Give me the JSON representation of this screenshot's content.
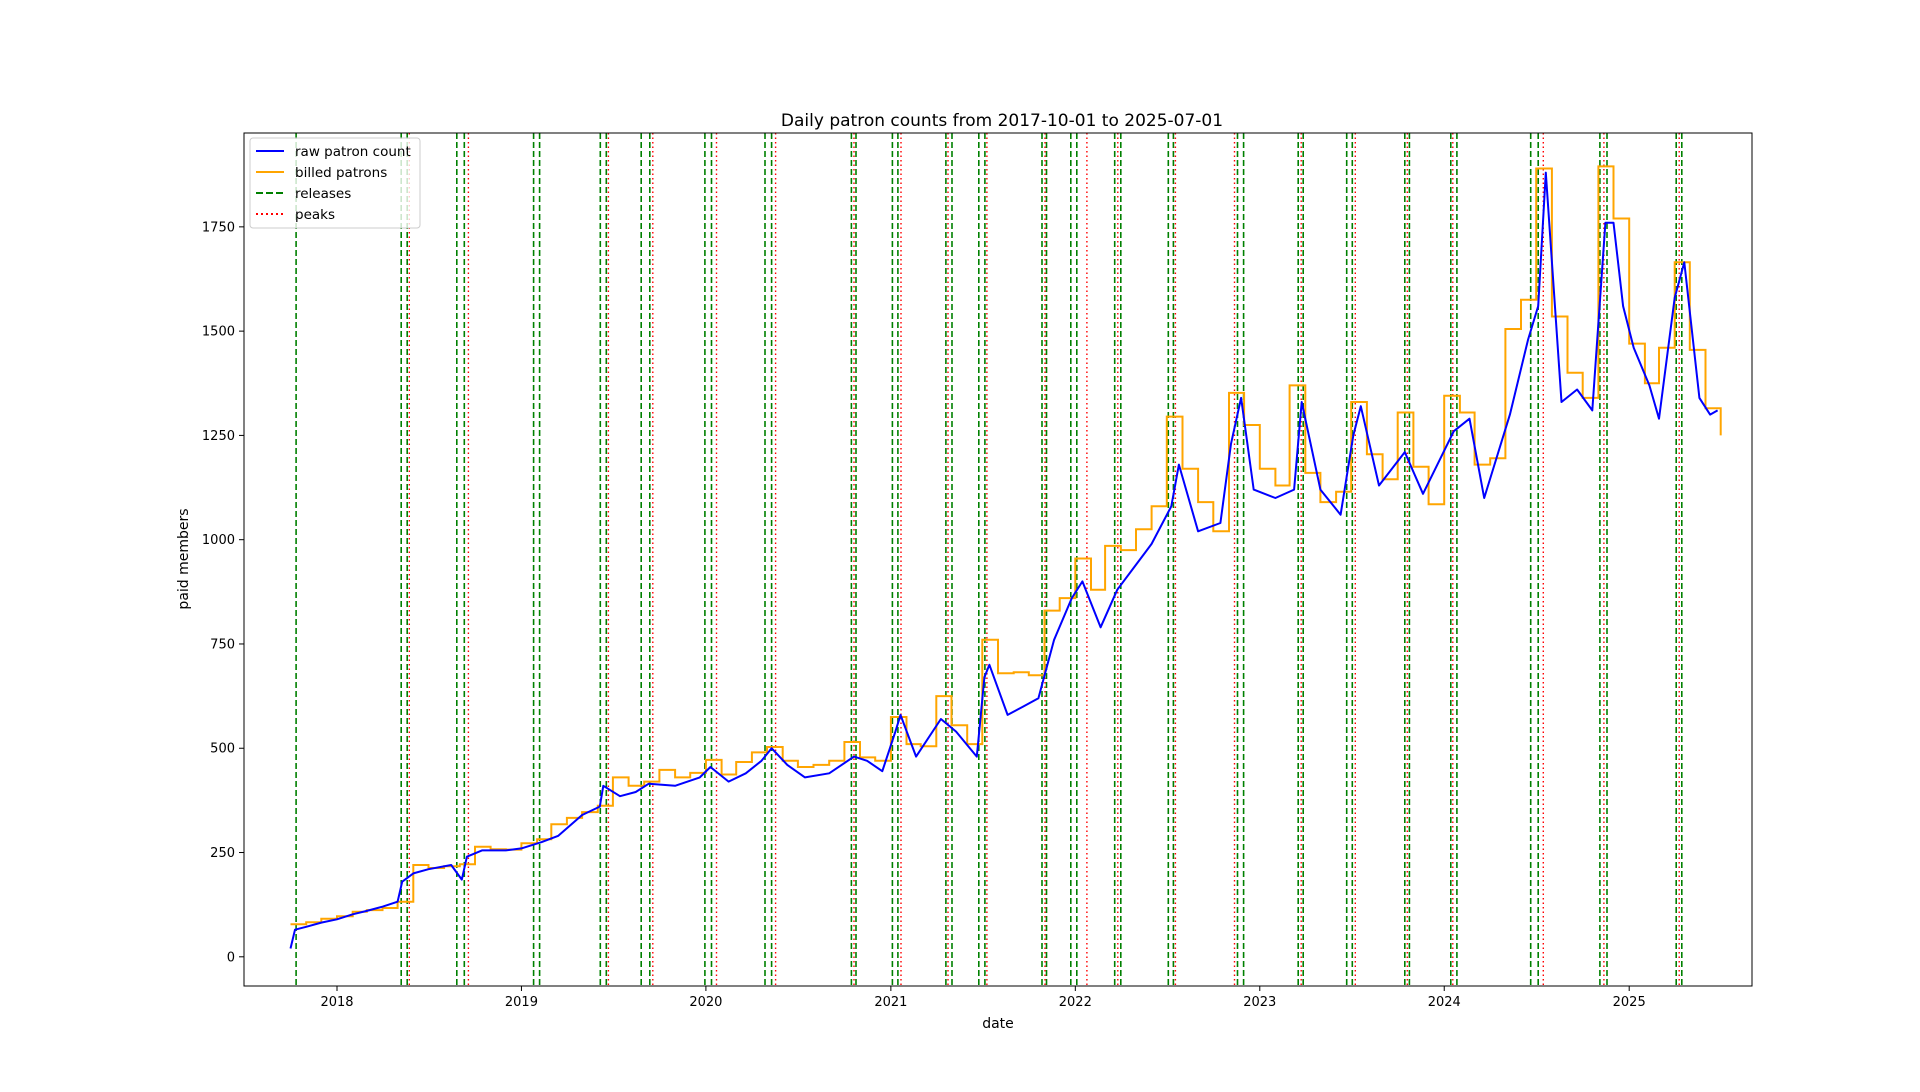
{
  "chart_data": {
    "type": "line",
    "title": "Daily patron counts from 2017-10-01 to 2025-07-01",
    "xlabel": "date",
    "ylabel": "paid members",
    "xlim": [
      "2017-07-01",
      "2025-09-01"
    ],
    "ylim": [
      -70,
      1975
    ],
    "x_ticks": [
      "2018",
      "2019",
      "2020",
      "2021",
      "2022",
      "2023",
      "2024",
      "2025"
    ],
    "y_ticks": [
      0,
      250,
      500,
      750,
      1000,
      1250,
      1500,
      1750
    ],
    "grid": false,
    "legend_position": "top-left",
    "colors": {
      "raw": "#0000ff",
      "billed": "#ffa500",
      "releases": "#008000",
      "peaks": "#ff0000"
    },
    "series": [
      {
        "name": "raw patron count",
        "style": "solid",
        "points": [
          [
            "2017-10-01",
            20
          ],
          [
            "2017-10-10",
            65
          ],
          [
            "2017-11-01",
            72
          ],
          [
            "2017-12-01",
            82
          ],
          [
            "2018-01-01",
            90
          ],
          [
            "2018-02-01",
            102
          ],
          [
            "2018-03-01",
            110
          ],
          [
            "2018-04-01",
            120
          ],
          [
            "2018-05-01",
            132
          ],
          [
            "2018-05-10",
            180
          ],
          [
            "2018-06-01",
            200
          ],
          [
            "2018-07-01",
            210
          ],
          [
            "2018-08-15",
            220
          ],
          [
            "2018-09-05",
            185
          ],
          [
            "2018-09-15",
            240
          ],
          [
            "2018-10-15",
            255
          ],
          [
            "2018-12-01",
            255
          ],
          [
            "2019-01-01",
            260
          ],
          [
            "2019-02-10",
            275
          ],
          [
            "2019-03-15",
            290
          ],
          [
            "2019-05-01",
            340
          ],
          [
            "2019-06-05",
            360
          ],
          [
            "2019-06-12",
            410
          ],
          [
            "2019-07-15",
            385
          ],
          [
            "2019-08-15",
            395
          ],
          [
            "2019-09-10",
            415
          ],
          [
            "2019-11-01",
            410
          ],
          [
            "2019-12-20",
            430
          ],
          [
            "2020-01-10",
            455
          ],
          [
            "2020-02-15",
            420
          ],
          [
            "2020-03-20",
            440
          ],
          [
            "2020-04-20",
            470
          ],
          [
            "2020-05-10",
            500
          ],
          [
            "2020-06-10",
            460
          ],
          [
            "2020-07-15",
            430
          ],
          [
            "2020-09-01",
            440
          ],
          [
            "2020-10-20",
            480
          ],
          [
            "2020-11-15",
            470
          ],
          [
            "2020-12-15",
            445
          ],
          [
            "2021-01-10",
            540
          ],
          [
            "2021-01-20",
            580
          ],
          [
            "2021-02-20",
            480
          ],
          [
            "2021-04-10",
            570
          ],
          [
            "2021-05-10",
            540
          ],
          [
            "2021-06-20",
            480
          ],
          [
            "2021-07-05",
            670
          ],
          [
            "2021-07-15",
            700
          ],
          [
            "2021-08-20",
            580
          ],
          [
            "2021-09-20",
            600
          ],
          [
            "2021-10-20",
            620
          ],
          [
            "2021-11-20",
            760
          ],
          [
            "2021-12-25",
            860
          ],
          [
            "2022-01-15",
            900
          ],
          [
            "2022-02-20",
            790
          ],
          [
            "2022-03-25",
            880
          ],
          [
            "2022-04-25",
            930
          ],
          [
            "2022-06-01",
            990
          ],
          [
            "2022-07-10",
            1080
          ],
          [
            "2022-07-25",
            1180
          ],
          [
            "2022-09-01",
            1020
          ],
          [
            "2022-10-15",
            1040
          ],
          [
            "2022-11-05",
            1230
          ],
          [
            "2022-11-25",
            1340
          ],
          [
            "2022-12-20",
            1120
          ],
          [
            "2023-02-01",
            1100
          ],
          [
            "2023-03-10",
            1120
          ],
          [
            "2023-03-25",
            1330
          ],
          [
            "2023-05-01",
            1120
          ],
          [
            "2023-06-10",
            1060
          ],
          [
            "2023-07-05",
            1250
          ],
          [
            "2023-07-20",
            1320
          ],
          [
            "2023-08-25",
            1130
          ],
          [
            "2023-10-15",
            1210
          ],
          [
            "2023-11-20",
            1110
          ],
          [
            "2024-01-20",
            1260
          ],
          [
            "2024-02-20",
            1290
          ],
          [
            "2024-03-20",
            1100
          ],
          [
            "2024-05-10",
            1300
          ],
          [
            "2024-06-15",
            1480
          ],
          [
            "2024-07-05",
            1560
          ],
          [
            "2024-07-20",
            1880
          ],
          [
            "2024-08-20",
            1330
          ],
          [
            "2024-09-20",
            1360
          ],
          [
            "2024-10-20",
            1310
          ],
          [
            "2024-11-15",
            1760
          ],
          [
            "2024-12-01",
            1760
          ],
          [
            "2024-12-20",
            1560
          ],
          [
            "2025-01-10",
            1460
          ],
          [
            "2025-02-10",
            1370
          ],
          [
            "2025-03-01",
            1290
          ],
          [
            "2025-04-01",
            1580
          ],
          [
            "2025-04-20",
            1665
          ],
          [
            "2025-05-20",
            1340
          ],
          [
            "2025-06-10",
            1300
          ],
          [
            "2025-06-25",
            1310
          ]
        ]
      },
      {
        "name": "billed patrons",
        "style": "step",
        "points": [
          [
            "2017-10-01",
            78
          ],
          [
            "2017-11-01",
            83
          ],
          [
            "2017-12-01",
            91
          ],
          [
            "2018-01-01",
            97
          ],
          [
            "2018-02-01",
            108
          ],
          [
            "2018-03-01",
            112
          ],
          [
            "2018-04-01",
            117
          ],
          [
            "2018-05-01",
            132
          ],
          [
            "2018-06-01",
            220
          ],
          [
            "2018-07-01",
            213
          ],
          [
            "2018-08-01",
            217
          ],
          [
            "2018-09-01",
            222
          ],
          [
            "2018-10-01",
            264
          ],
          [
            "2018-11-01",
            258
          ],
          [
            "2018-12-01",
            257
          ],
          [
            "2019-01-01",
            272
          ],
          [
            "2019-02-01",
            282
          ],
          [
            "2019-03-01",
            318
          ],
          [
            "2019-04-01",
            333
          ],
          [
            "2019-05-01",
            347
          ],
          [
            "2019-06-01",
            362
          ],
          [
            "2019-07-01",
            430
          ],
          [
            "2019-08-01",
            410
          ],
          [
            "2019-09-01",
            420
          ],
          [
            "2019-10-01",
            448
          ],
          [
            "2019-11-01",
            430
          ],
          [
            "2019-12-01",
            441
          ],
          [
            "2020-01-01",
            472
          ],
          [
            "2020-02-01",
            437
          ],
          [
            "2020-03-01",
            467
          ],
          [
            "2020-04-01",
            490
          ],
          [
            "2020-05-01",
            503
          ],
          [
            "2020-06-01",
            470
          ],
          [
            "2020-07-01",
            455
          ],
          [
            "2020-08-01",
            460
          ],
          [
            "2020-09-01",
            470
          ],
          [
            "2020-10-01",
            515
          ],
          [
            "2020-11-01",
            478
          ],
          [
            "2020-12-01",
            470
          ],
          [
            "2021-01-01",
            575
          ],
          [
            "2021-02-01",
            510
          ],
          [
            "2021-03-01",
            505
          ],
          [
            "2021-04-01",
            625
          ],
          [
            "2021-05-01",
            555
          ],
          [
            "2021-06-01",
            510
          ],
          [
            "2021-07-01",
            760
          ],
          [
            "2021-08-01",
            680
          ],
          [
            "2021-09-01",
            682
          ],
          [
            "2021-10-01",
            675
          ],
          [
            "2021-11-01",
            830
          ],
          [
            "2021-12-01",
            860
          ],
          [
            "2022-01-01",
            955
          ],
          [
            "2022-02-01",
            880
          ],
          [
            "2022-03-01",
            985
          ],
          [
            "2022-04-01",
            975
          ],
          [
            "2022-05-01",
            1025
          ],
          [
            "2022-06-01",
            1080
          ],
          [
            "2022-07-01",
            1295
          ],
          [
            "2022-08-01",
            1170
          ],
          [
            "2022-09-01",
            1090
          ],
          [
            "2022-10-01",
            1020
          ],
          [
            "2022-11-01",
            1352
          ],
          [
            "2022-12-01",
            1275
          ],
          [
            "2023-01-01",
            1170
          ],
          [
            "2023-02-01",
            1130
          ],
          [
            "2023-03-01",
            1370
          ],
          [
            "2023-04-01",
            1160
          ],
          [
            "2023-05-01",
            1090
          ],
          [
            "2023-06-01",
            1115
          ],
          [
            "2023-07-01",
            1330
          ],
          [
            "2023-08-01",
            1205
          ],
          [
            "2023-09-01",
            1145
          ],
          [
            "2023-10-01",
            1305
          ],
          [
            "2023-11-01",
            1175
          ],
          [
            "2023-12-01",
            1085
          ],
          [
            "2024-01-01",
            1345
          ],
          [
            "2024-02-01",
            1305
          ],
          [
            "2024-03-01",
            1180
          ],
          [
            "2024-04-01",
            1195
          ],
          [
            "2024-05-01",
            1505
          ],
          [
            "2024-06-01",
            1575
          ],
          [
            "2024-07-01",
            1890
          ],
          [
            "2024-08-01",
            1535
          ],
          [
            "2024-09-01",
            1400
          ],
          [
            "2024-10-01",
            1340
          ],
          [
            "2024-11-01",
            1895
          ],
          [
            "2024-12-01",
            1770
          ],
          [
            "2025-01-01",
            1470
          ],
          [
            "2025-02-01",
            1375
          ],
          [
            "2025-03-01",
            1460
          ],
          [
            "2025-04-01",
            1665
          ],
          [
            "2025-05-01",
            1455
          ],
          [
            "2025-06-01",
            1315
          ],
          [
            "2025-07-01",
            1250
          ]
        ]
      },
      {
        "name": "releases",
        "style": "dashed-vertical",
        "dates": [
          "2017-10-12",
          "2018-05-08",
          "2018-05-20",
          "2018-08-26",
          "2018-09-10",
          "2019-01-25",
          "2019-02-06",
          "2019-06-06",
          "2019-06-18",
          "2019-08-26",
          "2019-09-12",
          "2019-12-30",
          "2020-01-12",
          "2020-04-27",
          "2020-05-10",
          "2020-10-15",
          "2020-10-24",
          "2021-01-04",
          "2021-01-15",
          "2021-04-20",
          "2021-05-02",
          "2021-06-24",
          "2021-07-06",
          "2021-10-27",
          "2021-11-05",
          "2021-12-23",
          "2022-01-04",
          "2022-03-20",
          "2022-04-01",
          "2022-07-04",
          "2022-07-14",
          "2022-11-18",
          "2022-11-30",
          "2023-03-18",
          "2023-03-28",
          "2023-06-22",
          "2023-07-03",
          "2023-10-15",
          "2023-10-24",
          "2024-01-14",
          "2024-01-26",
          "2024-06-20",
          "2024-07-05",
          "2024-11-04",
          "2024-11-18",
          "2025-04-04",
          "2025-04-15"
        ]
      },
      {
        "name": "peaks",
        "style": "dotted-vertical",
        "dates": [
          "2018-05-24",
          "2018-09-18",
          "2019-06-22",
          "2019-09-18",
          "2020-01-22",
          "2020-05-18",
          "2020-10-20",
          "2021-01-21",
          "2021-04-24",
          "2021-07-10",
          "2021-11-02",
          "2022-01-24",
          "2022-03-26",
          "2022-07-18",
          "2022-11-12",
          "2023-03-24",
          "2023-07-09",
          "2023-10-20",
          "2024-01-18",
          "2024-07-15",
          "2024-11-12",
          "2025-04-10"
        ]
      }
    ]
  }
}
